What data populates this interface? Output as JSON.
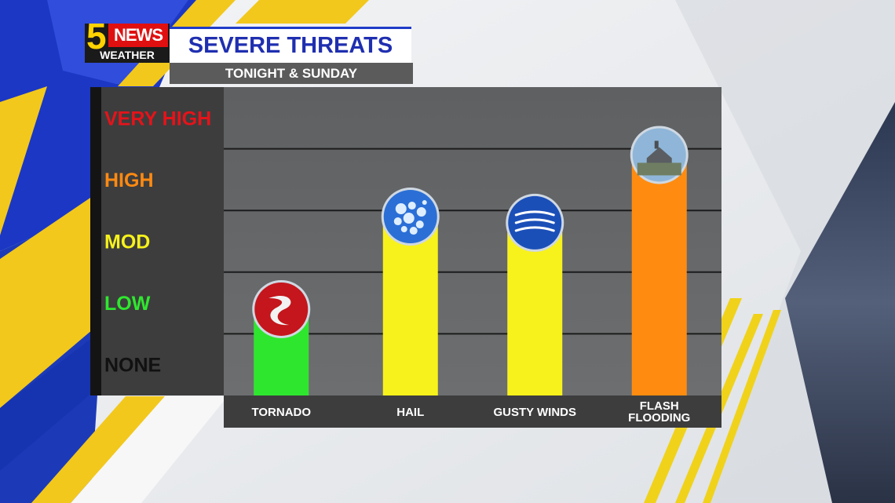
{
  "logo": {
    "number": "5",
    "brand": "NEWS",
    "sub": "WEATHER"
  },
  "header": {
    "title": "SEVERE THREATS",
    "subtitle": "TONIGHT & SUNDAY"
  },
  "chart_data": {
    "type": "bar",
    "title": "SEVERE THREATS",
    "subtitle": "TONIGHT & SUNDAY",
    "levels": [
      {
        "label": "NONE",
        "value": 0,
        "color": "#111111"
      },
      {
        "label": "LOW",
        "value": 1,
        "color": "#2ee82e"
      },
      {
        "label": "MOD",
        "value": 2,
        "color": "#f7f21b"
      },
      {
        "label": "HIGH",
        "value": 3,
        "color": "#ff8a12"
      },
      {
        "label": "VERY HIGH",
        "value": 4,
        "color": "#e5131a"
      }
    ],
    "categories": [
      {
        "lines": [
          "TORNADO"
        ],
        "icon": "tornado-icon"
      },
      {
        "lines": [
          "HAIL"
        ],
        "icon": "hail-icon"
      },
      {
        "lines": [
          "GUSTY WINDS"
        ],
        "icon": "wind-icon"
      },
      {
        "lines": [
          "FLASH",
          "FLOODING"
        ],
        "icon": "flood-house-icon"
      }
    ],
    "values": [
      0.9,
      2.4,
      2.3,
      3.4
    ],
    "bar_colors": [
      "#2fe62f",
      "#f8f21c",
      "#f8f21c",
      "#ff8c10"
    ],
    "ylim": [
      -0.5,
      4.5
    ]
  }
}
